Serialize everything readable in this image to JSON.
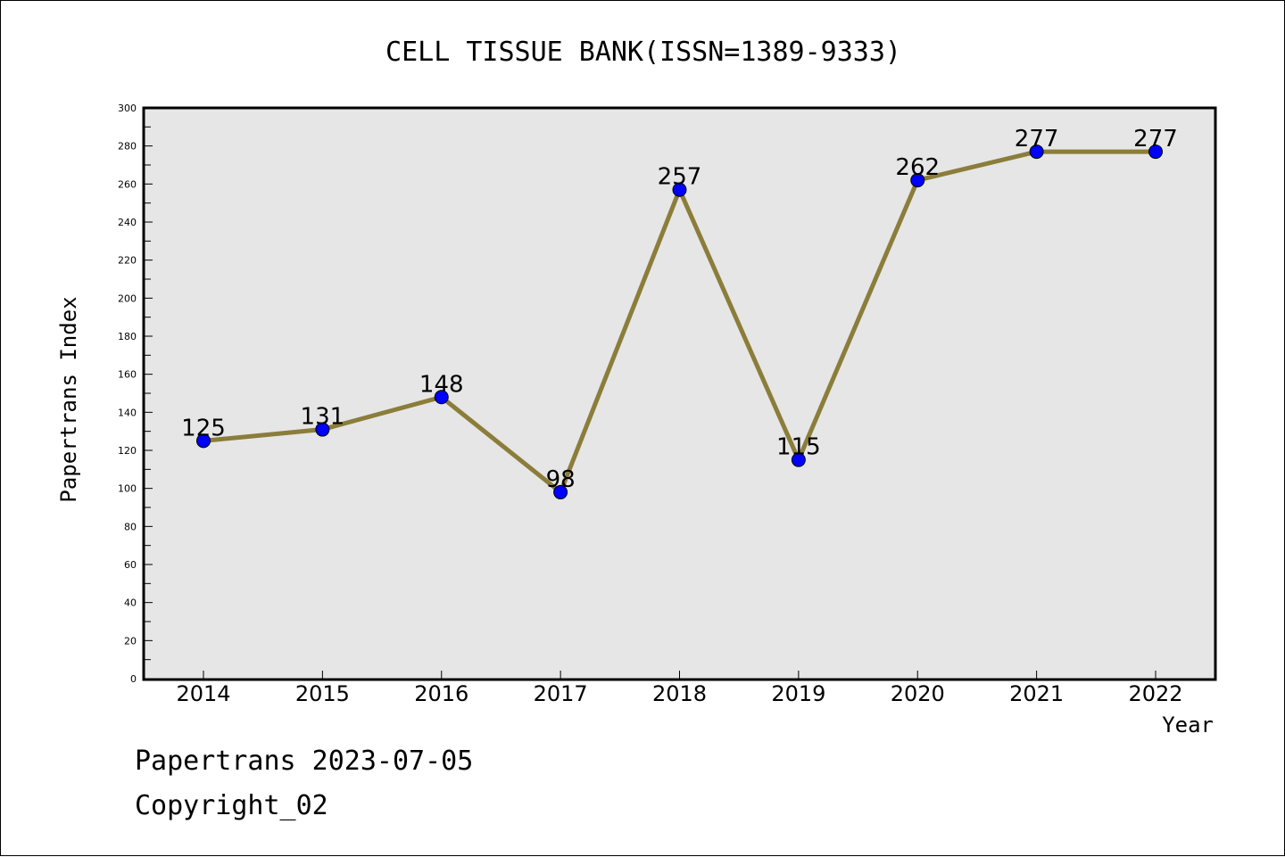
{
  "chart_data": {
    "type": "line",
    "title": "CELL TISSUE BANK(ISSN=1389-9333)",
    "xlabel": "Year",
    "ylabel": "Papertrans Index",
    "categories": [
      "2014",
      "2015",
      "2016",
      "2017",
      "2018",
      "2019",
      "2020",
      "2021",
      "2022"
    ],
    "series": [
      {
        "values": [
          125,
          131,
          148,
          98,
          257,
          115,
          262,
          277,
          277
        ]
      }
    ],
    "ylim": [
      0,
      300
    ],
    "y_ticks": [
      "0",
      "20",
      "40",
      "60",
      "80",
      "100",
      "120",
      "140",
      "160",
      "180",
      "200",
      "220",
      "240",
      "260",
      "280",
      "300"
    ],
    "data_labels": [
      "125",
      "131",
      "148",
      "98",
      "257",
      "115",
      "262",
      "277",
      "277"
    ],
    "grid": false,
    "colors": {
      "plot_background": "#e6e6e6",
      "line": "#8b7d3a",
      "marker": "#0000ff"
    }
  },
  "footer": {
    "line1": "Papertrans 2023-07-05",
    "line2": "Copyright_02"
  }
}
